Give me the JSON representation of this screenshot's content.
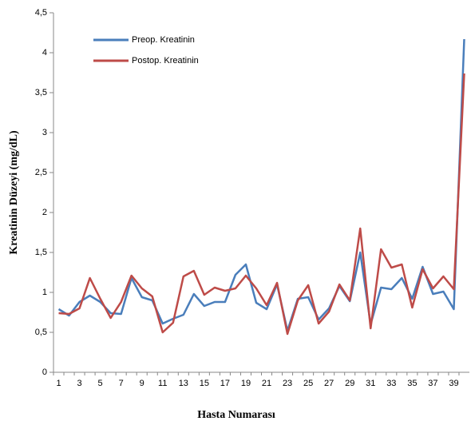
{
  "chart_data": {
    "type": "line",
    "x_label": "Hasta Numarası",
    "y_label": "Kreatinin Düzeyi (mg/dL)",
    "categories": [
      "1",
      null,
      "3",
      null,
      "5",
      null,
      "7",
      null,
      "9",
      null,
      "11",
      null,
      "13",
      null,
      "15",
      null,
      "17",
      null,
      "19",
      null,
      "21",
      null,
      "23",
      null,
      "25",
      null,
      "27",
      null,
      "29",
      null,
      "31",
      null,
      "33",
      null,
      "35",
      null,
      "37",
      null,
      "39",
      null
    ],
    "series": [
      {
        "name": "Preop.  Kreatinin",
        "color": "#4a7ebb",
        "values": [
          0.79,
          0.71,
          0.88,
          0.96,
          0.88,
          0.74,
          0.73,
          1.18,
          0.94,
          0.9,
          0.61,
          0.67,
          0.72,
          0.98,
          0.83,
          0.88,
          0.88,
          1.22,
          1.35,
          0.87,
          0.79,
          1.1,
          0.52,
          0.92,
          0.94,
          0.66,
          0.8,
          1.08,
          0.89,
          1.5,
          0.6,
          1.06,
          1.04,
          1.18,
          0.92,
          1.32,
          0.98,
          1.01,
          0.79,
          4.17
        ]
      },
      {
        "name": "Postop. Kreatinin",
        "color": "#be4b48",
        "values": [
          0.74,
          0.73,
          0.8,
          1.18,
          0.92,
          0.68,
          0.88,
          1.21,
          1.05,
          0.95,
          0.5,
          0.62,
          1.2,
          1.27,
          0.97,
          1.06,
          1.02,
          1.05,
          1.21,
          1.05,
          0.84,
          1.12,
          0.48,
          0.9,
          1.09,
          0.61,
          0.76,
          1.1,
          0.9,
          1.8,
          0.55,
          1.54,
          1.31,
          1.35,
          0.81,
          1.29,
          1.05,
          1.2,
          1.04,
          3.74
        ]
      }
    ],
    "ylim": [
      0,
      4.5
    ],
    "yticks": [
      0,
      {
        "value": 0.5,
        "label": "0,5"
      },
      1,
      {
        "value": 1.5,
        "label": "1,5"
      },
      2,
      {
        "value": 2.5,
        "label": "2,5"
      },
      3,
      {
        "value": 3.5,
        "label": "3,5"
      },
      4,
      {
        "value": 4.5,
        "label": "4,5"
      }
    ],
    "legend": "upper-left",
    "grid": false
  }
}
